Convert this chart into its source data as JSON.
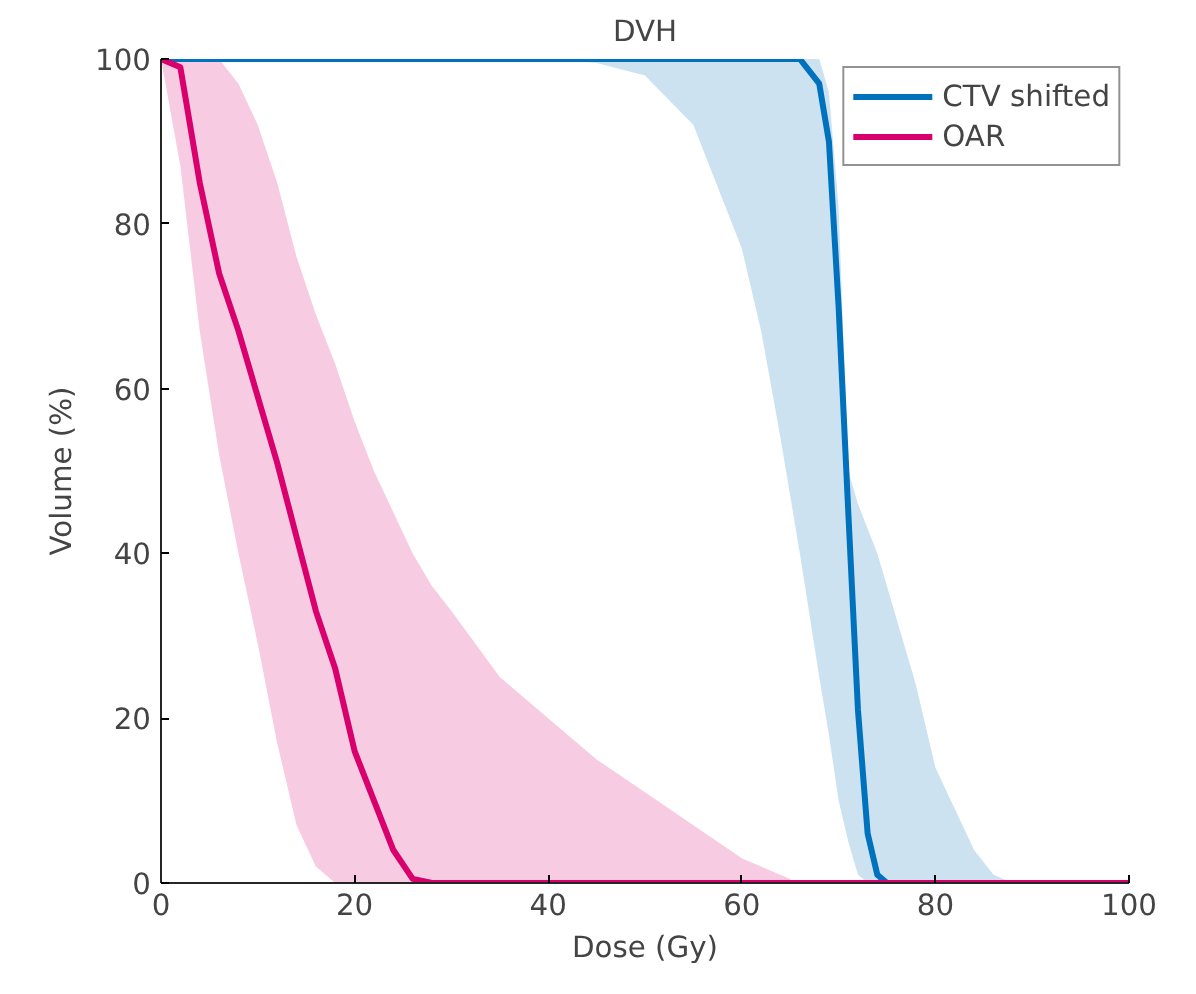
{
  "chart_data": {
    "type": "line",
    "title": "DVH",
    "xlabel": "Dose (Gy)",
    "ylabel": "Volume (%)",
    "xlim": [
      0,
      100
    ],
    "ylim": [
      0,
      100
    ],
    "xticks": [
      0,
      20,
      40,
      60,
      80,
      100
    ],
    "yticks": [
      0,
      20,
      40,
      60,
      80,
      100
    ],
    "grid": false,
    "legend": "top right",
    "marker": "none",
    "line_style": "solid",
    "series": [
      {
        "name": "CTV shifted",
        "color": "#0072bd",
        "x": [
          0,
          40,
          45,
          50,
          55,
          60,
          62,
          64,
          66,
          68,
          69,
          70,
          71,
          72,
          73,
          74,
          75,
          76,
          78,
          80,
          82,
          84,
          86,
          88,
          100
        ],
        "values": [
          100,
          100,
          100,
          100,
          100,
          100,
          100,
          100,
          100,
          97,
          90,
          70,
          45,
          21,
          6,
          1,
          0,
          null,
          null,
          null,
          null,
          null,
          null,
          null,
          null
        ],
        "lower": [
          100,
          100,
          99.5,
          98,
          92,
          77,
          67,
          54,
          40,
          25,
          18,
          10,
          5,
          1,
          0,
          0,
          0,
          0,
          0,
          0,
          0,
          0,
          0,
          0,
          0
        ],
        "upper": [
          100,
          100,
          100,
          100,
          100,
          100,
          100,
          100,
          100,
          100,
          96,
          82,
          50,
          46,
          43,
          40,
          36,
          32,
          24,
          14,
          9,
          4,
          1,
          0,
          0
        ]
      },
      {
        "name": "OAR",
        "color": "#d9006e",
        "x": [
          0,
          2,
          4,
          6,
          8,
          10,
          12,
          14,
          16,
          18,
          20,
          22,
          24,
          26,
          28,
          30,
          35,
          40,
          45,
          50,
          55,
          60,
          65,
          70,
          100
        ],
        "values": [
          100,
          99,
          85,
          74,
          67,
          59,
          51,
          42,
          33,
          26,
          16,
          10,
          4,
          0.5,
          0,
          0,
          0,
          0,
          0,
          0,
          0,
          0,
          0,
          0,
          0
        ],
        "lower": [
          100,
          87,
          67,
          52,
          40,
          29,
          17,
          7,
          2,
          0,
          0,
          0,
          0,
          0,
          0,
          0,
          0,
          0,
          0,
          0,
          0,
          0,
          0,
          null,
          null
        ],
        "upper": [
          100,
          100,
          100,
          100,
          97,
          92,
          85,
          76,
          69,
          63,
          56,
          50,
          45,
          40,
          36,
          33,
          25,
          20,
          15,
          11,
          7,
          3,
          0.5,
          null,
          null
        ]
      }
    ]
  }
}
